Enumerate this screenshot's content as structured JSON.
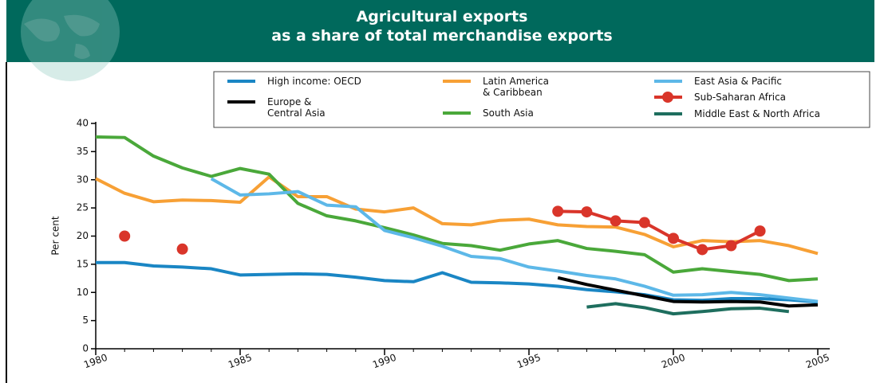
{
  "chart_data": {
    "type": "line",
    "title": "Agricultural exports",
    "subtitle": "as a share of total merchandise exports",
    "y_label": "Per cent",
    "x": [
      1980,
      1981,
      1982,
      1983,
      1984,
      1985,
      1986,
      1987,
      1988,
      1989,
      1990,
      1991,
      1992,
      1993,
      1994,
      1995,
      1996,
      1997,
      1998,
      1999,
      2000,
      2001,
      2002,
      2003,
      2004,
      2005
    ],
    "xlim": [
      1980,
      2005
    ],
    "xticks": [
      1980,
      1985,
      1990,
      1995,
      2000,
      2005
    ],
    "ylim": [
      0,
      40
    ],
    "yticks": [
      0,
      5,
      10,
      15,
      20,
      25,
      30,
      35,
      40
    ],
    "grid": false,
    "series": [
      {
        "name": "High income: OECD",
        "color": "#1a86c4",
        "values": [
          15.3,
          15.3,
          14.7,
          14.5,
          14.2,
          13.1,
          13.2,
          13.3,
          13.2,
          12.7,
          12.1,
          11.9,
          13.5,
          11.8,
          11.7,
          11.5,
          11.1,
          10.5,
          10.1,
          9.6,
          8.7,
          8.6,
          8.9,
          8.9,
          8.7,
          8.3
        ]
      },
      {
        "name": "Europe & Central Asia",
        "color": "#000000",
        "values": [
          null,
          null,
          null,
          null,
          null,
          null,
          null,
          null,
          null,
          null,
          null,
          null,
          null,
          null,
          null,
          null,
          12.6,
          11.4,
          10.4,
          9.4,
          8.4,
          8.3,
          8.4,
          8.3,
          7.6,
          7.8
        ]
      },
      {
        "name": "Latin America & Caribbean",
        "color": "#f7a035",
        "values": [
          30.2,
          27.6,
          26.1,
          26.4,
          26.3,
          26.0,
          30.5,
          27.0,
          27.0,
          24.8,
          24.3,
          25.0,
          22.2,
          22.0,
          22.8,
          23.0,
          22.0,
          21.7,
          21.6,
          20.3,
          18.1,
          19.2,
          19.0,
          19.2,
          18.3,
          16.9
        ]
      },
      {
        "name": "South Asia",
        "color": "#4aa83a",
        "values": [
          37.6,
          37.5,
          34.2,
          32.1,
          30.6,
          32.0,
          31.0,
          25.8,
          23.6,
          22.7,
          21.5,
          20.2,
          18.7,
          18.3,
          17.5,
          18.6,
          19.2,
          17.8,
          17.3,
          16.7,
          13.6,
          14.2,
          13.7,
          13.2,
          12.1,
          12.4
        ]
      },
      {
        "name": "East Asia & Pacific",
        "color": "#5db8e8",
        "values": [
          null,
          null,
          null,
          null,
          30.2,
          27.3,
          27.5,
          27.9,
          25.5,
          25.2,
          21.0,
          19.7,
          18.2,
          16.4,
          16.0,
          14.5,
          13.8,
          13.0,
          12.4,
          11.1,
          9.5,
          9.6,
          10.0,
          9.6,
          9.0,
          8.4
        ]
      },
      {
        "name": "Sub-Saharan Africa",
        "color": "#d9352a",
        "markers": true,
        "values": [
          null,
          20.0,
          null,
          17.7,
          null,
          null,
          null,
          null,
          null,
          null,
          null,
          null,
          null,
          null,
          null,
          null,
          24.4,
          24.3,
          22.7,
          22.4,
          19.6,
          17.6,
          18.3,
          20.9,
          null,
          null
        ]
      },
      {
        "name": "Middle East & North Africa",
        "color": "#1e6e5e",
        "values": [
          null,
          null,
          null,
          null,
          null,
          null,
          null,
          null,
          null,
          null,
          null,
          null,
          null,
          null,
          null,
          null,
          null,
          7.4,
          8.0,
          7.3,
          6.2,
          6.6,
          7.1,
          7.2,
          6.6,
          null
        ]
      }
    ]
  }
}
